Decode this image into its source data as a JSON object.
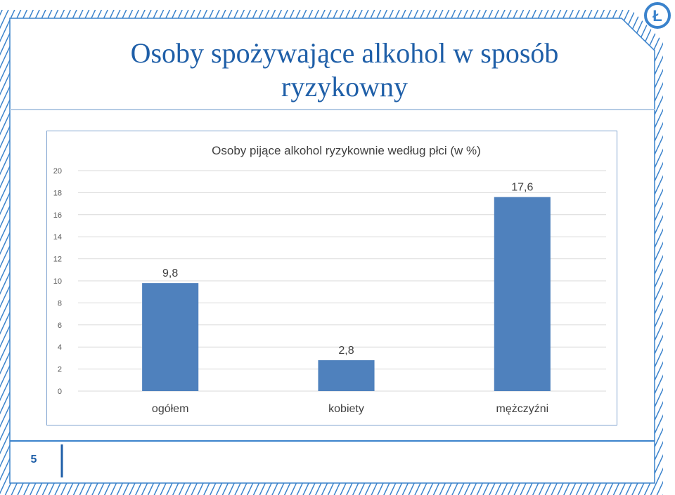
{
  "slide": {
    "title": "Osoby spożywające alkohol w sposób ryzykowny",
    "page_number": "5",
    "logo_text": "Ł"
  },
  "colors": {
    "frame": "#3b83cc",
    "title": "#1f5fa8",
    "bar": "#4f81bd",
    "grid": "#d9d9d9",
    "axis_text": "#595959"
  },
  "chart_data": {
    "type": "bar",
    "title": "Osoby pijące alkohol ryzykownie według płci (w %)",
    "categories": [
      "ogółem",
      "kobiety",
      "mężczyźni"
    ],
    "values": [
      9.8,
      2.8,
      17.6
    ],
    "value_labels": [
      "9,8",
      "2,8",
      "17,6"
    ],
    "y_ticks": [
      "0",
      "2",
      "4",
      "6",
      "8",
      "10",
      "12",
      "14",
      "16",
      "18",
      "20"
    ],
    "ylim": [
      0,
      20
    ],
    "grid": true,
    "legend": "none"
  }
}
